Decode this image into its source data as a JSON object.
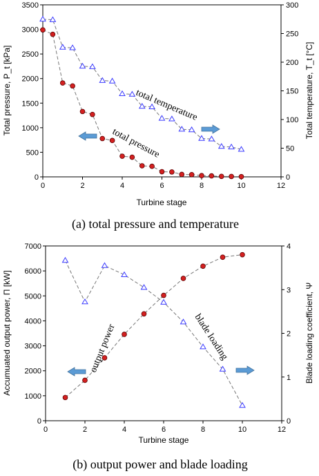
{
  "chart_data": [
    {
      "type": "line",
      "caption": "(a)  total pressure and temperature",
      "xlabel": "Turbine stage",
      "ylabel_left": "Total pressure, P_t [kPa]",
      "ylabel_right": "Total temperature, T_t [°C]",
      "xlim": [
        0,
        12
      ],
      "ylim_left": [
        0,
        3500
      ],
      "ylim_right": [
        0,
        300
      ],
      "xticks": [
        "0",
        "2",
        "4",
        "6",
        "8",
        "10",
        "12"
      ],
      "yticks_left": [
        "0",
        "500",
        "1000",
        "1500",
        "2000",
        "2500",
        "3000",
        "3500"
      ],
      "yticks_right": [
        "0",
        "50",
        "100",
        "150",
        "200",
        "250",
        "300"
      ],
      "grid": false,
      "annotations": [
        "total temperature",
        "total pressure"
      ],
      "series": [
        {
          "axis": "right",
          "marker": "triangle",
          "color": "#3a3aff",
          "x": [
            0,
            0.5,
            1,
            1.5,
            2,
            2.5,
            3,
            3.5,
            4,
            4.5,
            5,
            5.5,
            6,
            6.5,
            7,
            7.5,
            8,
            8.5,
            9,
            9.5,
            10
          ],
          "values": [
            275,
            274,
            226,
            225,
            193,
            192,
            168,
            167,
            145,
            144,
            123,
            122,
            102,
            101,
            83,
            82,
            67,
            66,
            53,
            52,
            48
          ]
        },
        {
          "axis": "left",
          "marker": "circle",
          "color": "#d42020",
          "x": [
            0,
            0.5,
            1,
            1.5,
            2,
            2.5,
            3,
            3.5,
            4,
            4.5,
            5,
            5.5,
            6,
            6.5,
            7,
            7.5,
            8,
            8.5,
            9,
            9.5,
            10
          ],
          "values": [
            2990,
            2900,
            1910,
            1850,
            1330,
            1270,
            780,
            740,
            420,
            400,
            225,
            215,
            105,
            100,
            50,
            45,
            25,
            20,
            10,
            8,
            5
          ]
        }
      ]
    },
    {
      "type": "line",
      "caption": "(b)  output power and blade loading",
      "xlabel": "Turbine stage",
      "ylabel_left": "Accumuated output power, Π [kW]",
      "ylabel_right": "Blade loading coefficient, Ψ",
      "xlim": [
        0,
        12
      ],
      "ylim_left": [
        0,
        7000
      ],
      "ylim_right": [
        0,
        4
      ],
      "xticks": [
        "0",
        "2",
        "4",
        "6",
        "8",
        "10",
        "12"
      ],
      "yticks_left": [
        "0",
        "1000",
        "2000",
        "3000",
        "4000",
        "5000",
        "6000",
        "7000"
      ],
      "yticks_right": [
        "0",
        "1",
        "2",
        "3",
        "4"
      ],
      "grid": false,
      "annotations": [
        "output power",
        "blade loading"
      ],
      "series": [
        {
          "axis": "left",
          "marker": "circle",
          "color": "#d42020",
          "x": [
            1,
            2,
            3,
            4,
            5,
            6,
            7,
            8,
            9,
            10
          ],
          "values": [
            930,
            1620,
            2520,
            3460,
            4280,
            5020,
            5700,
            6190,
            6550,
            6650
          ]
        },
        {
          "axis": "right",
          "marker": "triangle",
          "color": "#3a3aff",
          "x": [
            1,
            2,
            3,
            4,
            5,
            6,
            7,
            8,
            9,
            10
          ],
          "values": [
            3.67,
            2.72,
            3.55,
            3.34,
            3.05,
            2.71,
            2.26,
            1.69,
            1.18,
            0.35
          ]
        }
      ]
    }
  ]
}
